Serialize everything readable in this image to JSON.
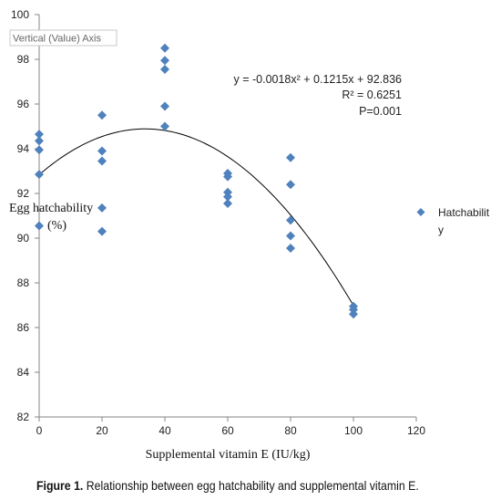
{
  "chart_data": {
    "type": "scatter",
    "xlabel": "Supplemental vitamin E (IU/kg)",
    "ylabel_lines": [
      "Egg hatchability",
      "(%)"
    ],
    "xlim": [
      0,
      120
    ],
    "ylim": [
      82,
      100
    ],
    "x_ticks": [
      0,
      20,
      40,
      60,
      80,
      100,
      120
    ],
    "y_ticks": [
      82,
      84,
      86,
      88,
      90,
      92,
      94,
      96,
      98,
      100
    ],
    "grid": false,
    "legend_position": "right",
    "series": [
      {
        "name_lines": [
          "Hatchabilit",
          "y"
        ],
        "color": "#4f81bd",
        "marker": "diamond",
        "points": [
          [
            0,
            94.65
          ],
          [
            0,
            94.35
          ],
          [
            0,
            93.95
          ],
          [
            0,
            92.85
          ],
          [
            0,
            90.55
          ],
          [
            20,
            95.5
          ],
          [
            20,
            93.9
          ],
          [
            20,
            93.45
          ],
          [
            20,
            91.35
          ],
          [
            20,
            90.3
          ],
          [
            40,
            98.5
          ],
          [
            40,
            97.95
          ],
          [
            40,
            97.55
          ],
          [
            40,
            95.9
          ],
          [
            40,
            95.0
          ],
          [
            60,
            92.9
          ],
          [
            60,
            92.75
          ],
          [
            60,
            92.05
          ],
          [
            60,
            91.85
          ],
          [
            60,
            91.55
          ],
          [
            80,
            93.6
          ],
          [
            80,
            92.4
          ],
          [
            80,
            90.8
          ],
          [
            80,
            90.1
          ],
          [
            80,
            89.55
          ],
          [
            100,
            86.95
          ],
          [
            100,
            86.8
          ],
          [
            100,
            86.6
          ]
        ]
      }
    ],
    "trendline": {
      "type": "polynomial",
      "coefficients": {
        "a": -0.0018,
        "b": 0.1215,
        "c": 92.836
      },
      "equation": "y = -0.0018x² + 0.1215x + 92.836",
      "r_squared": "R² = 0.6251",
      "p_value": "P=0.001",
      "color": "#000000"
    },
    "tooltip": "Vertical (Value) Axis"
  },
  "caption": {
    "label": "Figure 1.",
    "text": " Relationship between egg hatchability and supplemental vitamin E."
  }
}
